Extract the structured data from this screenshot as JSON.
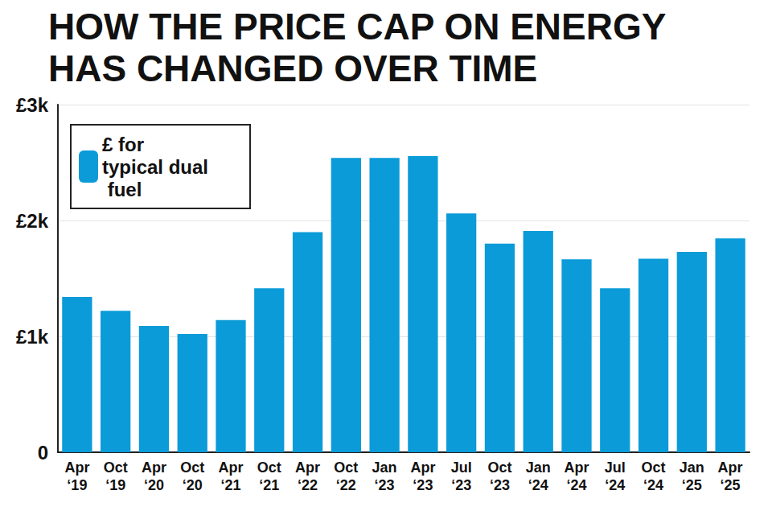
{
  "chart_data": {
    "type": "bar",
    "title": "HOW THE PRICE CAP ON ENERGY HAS CHANGED OVER TIME",
    "categories": [
      "Apr ‘19",
      "Oct ‘19",
      "Apr ‘20",
      "Oct ‘20",
      "Apr ‘21",
      "Oct ‘21",
      "Apr ‘22",
      "Oct ‘22",
      "Jan ‘23",
      "Apr ‘23",
      "Jul ‘23",
      "Oct ‘23",
      "Jan ‘24",
      "Apr ‘24",
      "Jul ‘24",
      "Oct ‘24",
      "Jan ‘25",
      "Apr ‘25"
    ],
    "series": [
      {
        "name": "£ for typical dual fuel",
        "color": "#0a9bd8",
        "values": [
          1340,
          1220,
          1090,
          1020,
          1140,
          1415,
          1900,
          2540,
          2540,
          2555,
          2060,
          1800,
          1910,
          1665,
          1415,
          1670,
          1730,
          1845
        ]
      }
    ],
    "ylim": [
      0,
      3000
    ],
    "yticks": [
      0,
      {
        "value": 1000,
        "label": "£1k"
      },
      {
        "value": 2000,
        "label": "£2k"
      },
      {
        "value": 3000,
        "label": "£3k"
      }
    ],
    "grid": true,
    "legend": "top-left"
  }
}
